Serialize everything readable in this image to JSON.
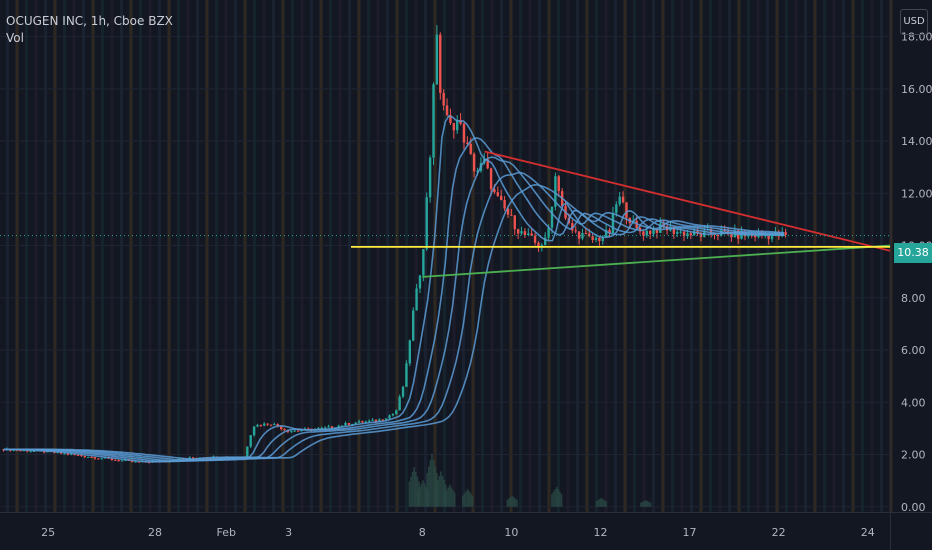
{
  "legend": {
    "title": "OCUGEN INC, 1h, Cboe BZX",
    "indicator": "Vol"
  },
  "currency": "USD",
  "last_price": {
    "label": "10.38",
    "value": 10.38,
    "color": "#26a69a"
  },
  "colors": {
    "background": "#131722",
    "up": "#26a69a",
    "down": "#ef5350",
    "ma": "#5b9bd5",
    "resistance": "#d32f2f",
    "support": "#4caf50",
    "horizontal": "#ffeb3b"
  },
  "chart_data": {
    "type": "candlestick",
    "y_ticks": [
      "18.00",
      "16.00",
      "14.00",
      "12.00",
      "10.00",
      "8.00",
      "6.00",
      "4.00",
      "2.00",
      "0.00"
    ],
    "y_tick_values": [
      18,
      16,
      14,
      12,
      10,
      8,
      6,
      4,
      2,
      0
    ],
    "ylim": [
      -0.2,
      19.4
    ],
    "x_ticks": [
      {
        "label": "25",
        "pos": 3
      },
      {
        "label": "28",
        "pos": 15
      },
      {
        "label": "Feb",
        "pos": 23
      },
      {
        "label": "3",
        "pos": 30
      },
      {
        "label": "8",
        "pos": 45
      },
      {
        "label": "10",
        "pos": 55
      },
      {
        "label": "12",
        "pos": 65
      },
      {
        "label": "17",
        "pos": 75
      },
      {
        "label": "22",
        "pos": 85
      },
      {
        "label": "24",
        "pos": 95
      }
    ],
    "xlim": [
      -2.4,
      97.5
    ],
    "price_path": [
      [
        -2,
        2.2
      ],
      [
        3,
        2.1
      ],
      [
        8,
        1.9
      ],
      [
        13,
        1.7
      ],
      [
        16,
        1.75
      ],
      [
        20,
        1.9
      ],
      [
        25,
        1.9
      ],
      [
        26,
        3.1
      ],
      [
        28,
        3.2
      ],
      [
        30,
        2.9
      ],
      [
        34,
        3.0
      ],
      [
        37,
        3.2
      ],
      [
        40,
        3.3
      ],
      [
        42,
        3.6
      ],
      [
        43,
        4.8
      ],
      [
        44,
        7.5
      ],
      [
        45,
        9.5
      ],
      [
        46,
        14.0
      ],
      [
        46.5,
        18.5
      ],
      [
        47,
        16.0
      ],
      [
        48,
        14.5
      ],
      [
        49,
        14.8
      ],
      [
        50,
        13.8
      ],
      [
        51,
        12.8
      ],
      [
        52,
        13.2
      ],
      [
        53,
        12.0
      ],
      [
        54,
        11.5
      ],
      [
        55,
        11.0
      ],
      [
        56,
        10.5
      ],
      [
        57,
        10.3
      ],
      [
        58,
        10.0
      ],
      [
        59,
        10.2
      ],
      [
        60,
        12.8
      ],
      [
        61,
        11.0
      ],
      [
        62,
        10.5
      ],
      [
        63,
        10.4
      ],
      [
        64,
        10.2
      ],
      [
        65,
        10.3
      ],
      [
        66,
        10.5
      ],
      [
        67,
        11.9
      ],
      [
        68,
        11.2
      ],
      [
        69,
        10.6
      ],
      [
        70,
        10.5
      ],
      [
        72,
        10.7
      ],
      [
        74,
        10.5
      ],
      [
        76,
        10.4
      ],
      [
        78,
        10.5
      ],
      [
        80,
        10.4
      ],
      [
        82,
        10.4
      ],
      [
        84,
        10.4
      ],
      [
        86,
        10.38
      ]
    ],
    "moving_averages": [
      {
        "shift": 0.6,
        "smooth": 3
      },
      {
        "shift": 1.6,
        "smooth": 5
      },
      {
        "shift": 2.6,
        "smooth": 7
      },
      {
        "shift": 3.8,
        "smooth": 9
      },
      {
        "shift": 5.2,
        "smooth": 11
      }
    ],
    "trendlines": [
      {
        "kind": "resistance",
        "from": [
          52,
          13.6
        ],
        "to": [
          97.5,
          9.8
        ]
      },
      {
        "kind": "support",
        "from": [
          45,
          8.8
        ],
        "to": [
          97.5,
          10.0
        ]
      },
      {
        "kind": "horizontal",
        "from": [
          37,
          9.95
        ],
        "to": [
          97.5,
          9.95
        ]
      }
    ],
    "volume_profile": [
      [
        44,
        1.8
      ],
      [
        45,
        1.2
      ],
      [
        46,
        2.4
      ],
      [
        47,
        1.6
      ],
      [
        48,
        1.0
      ],
      [
        50,
        0.8
      ],
      [
        55,
        0.5
      ],
      [
        60,
        0.9
      ],
      [
        65,
        0.4
      ],
      [
        70,
        0.3
      ]
    ]
  }
}
